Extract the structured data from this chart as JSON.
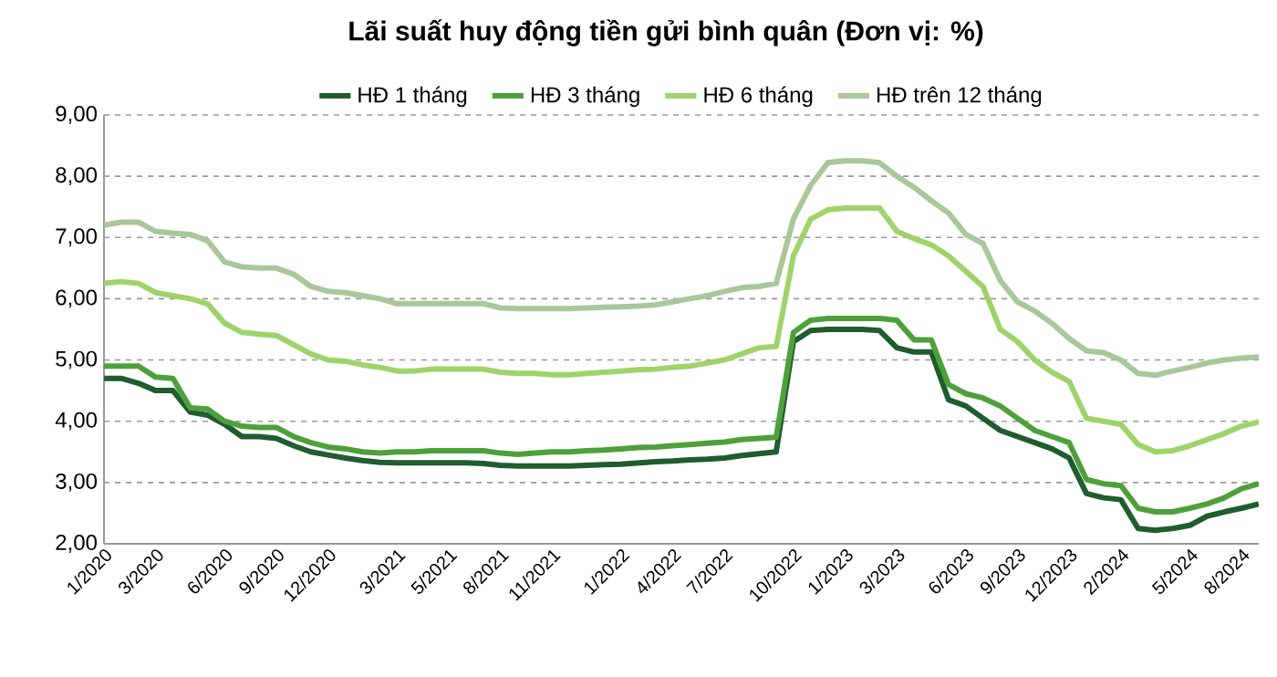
{
  "chart_data": {
    "type": "line",
    "title": "Lãi suất huy động tiền gửi bình quân (Đơn vị: %)",
    "categories": [
      "1/2020",
      null,
      null,
      "3/2020",
      null,
      null,
      null,
      "6/2020",
      null,
      null,
      "9/2020",
      null,
      null,
      "12/2020",
      null,
      null,
      null,
      "3/2021",
      null,
      null,
      "5/2021",
      null,
      null,
      "8/2021",
      null,
      null,
      "11/2021",
      null,
      null,
      null,
      "1/2022",
      null,
      null,
      "4/2022",
      null,
      null,
      "7/2022",
      null,
      null,
      null,
      "10/2022",
      null,
      null,
      "1/2023",
      null,
      null,
      "3/2023",
      null,
      null,
      null,
      "6/2023",
      null,
      null,
      "9/2023",
      null,
      null,
      "12/2023",
      null,
      null,
      "2/2024",
      null,
      null,
      null,
      "5/2024",
      null,
      null,
      "8/2024",
      null
    ],
    "series": [
      {
        "name": "HĐ 1 tháng",
        "color": "#1f5c2e",
        "values": [
          4.7,
          4.7,
          4.62,
          4.5,
          4.5,
          4.15,
          4.1,
          3.95,
          3.75,
          3.75,
          3.72,
          3.6,
          3.5,
          3.45,
          3.4,
          3.36,
          3.33,
          3.32,
          3.32,
          3.32,
          3.32,
          3.32,
          3.31,
          3.28,
          3.27,
          3.27,
          3.27,
          3.27,
          3.28,
          3.29,
          3.3,
          3.32,
          3.34,
          3.35,
          3.37,
          3.38,
          3.4,
          3.44,
          3.47,
          3.5,
          5.3,
          5.48,
          5.5,
          5.5,
          5.5,
          5.48,
          5.2,
          5.13,
          5.13,
          4.35,
          4.25,
          4.05,
          3.85,
          3.75,
          3.65,
          3.55,
          3.4,
          2.82,
          2.75,
          2.72,
          2.25,
          2.22,
          2.25,
          2.3,
          2.45,
          2.52,
          2.58,
          2.65
        ]
      },
      {
        "name": "HĐ 3 tháng",
        "color": "#4ea03a",
        "values": [
          4.9,
          4.9,
          4.9,
          4.72,
          4.7,
          4.22,
          4.2,
          4.0,
          3.92,
          3.9,
          3.9,
          3.75,
          3.65,
          3.58,
          3.55,
          3.5,
          3.48,
          3.5,
          3.5,
          3.52,
          3.52,
          3.52,
          3.52,
          3.48,
          3.46,
          3.48,
          3.5,
          3.5,
          3.52,
          3.53,
          3.55,
          3.57,
          3.58,
          3.6,
          3.62,
          3.64,
          3.66,
          3.7,
          3.72,
          3.74,
          5.45,
          5.65,
          5.68,
          5.68,
          5.68,
          5.68,
          5.65,
          5.33,
          5.33,
          4.6,
          4.45,
          4.38,
          4.25,
          4.05,
          3.85,
          3.75,
          3.65,
          3.05,
          2.98,
          2.95,
          2.58,
          2.52,
          2.52,
          2.58,
          2.65,
          2.75,
          2.9,
          2.98
        ]
      },
      {
        "name": "HĐ 6 tháng",
        "color": "#9fd36a",
        "values": [
          6.25,
          6.28,
          6.25,
          6.1,
          6.05,
          6.0,
          5.92,
          5.6,
          5.45,
          5.42,
          5.4,
          5.25,
          5.1,
          5.0,
          4.98,
          4.92,
          4.88,
          4.82,
          4.82,
          4.85,
          4.85,
          4.85,
          4.85,
          4.8,
          4.78,
          4.78,
          4.76,
          4.76,
          4.78,
          4.8,
          4.82,
          4.84,
          4.85,
          4.88,
          4.9,
          4.95,
          5.0,
          5.1,
          5.2,
          5.22,
          6.7,
          7.3,
          7.45,
          7.48,
          7.48,
          7.48,
          7.1,
          6.98,
          6.88,
          6.7,
          6.45,
          6.2,
          5.5,
          5.3,
          5.0,
          4.8,
          4.65,
          4.05,
          4.0,
          3.95,
          3.62,
          3.5,
          3.52,
          3.6,
          3.7,
          3.8,
          3.92,
          3.99
        ]
      },
      {
        "name": "HĐ trên 12 tháng",
        "color": "#a8c79a",
        "values": [
          7.2,
          7.25,
          7.25,
          7.1,
          7.07,
          7.05,
          6.95,
          6.6,
          6.52,
          6.5,
          6.5,
          6.4,
          6.2,
          6.12,
          6.1,
          6.05,
          6.0,
          5.92,
          5.92,
          5.92,
          5.92,
          5.92,
          5.92,
          5.85,
          5.84,
          5.84,
          5.84,
          5.84,
          5.85,
          5.86,
          5.87,
          5.88,
          5.9,
          5.95,
          6.0,
          6.05,
          6.12,
          6.18,
          6.2,
          6.25,
          7.3,
          7.85,
          8.22,
          8.25,
          8.25,
          8.22,
          8.0,
          7.82,
          7.6,
          7.4,
          7.05,
          6.9,
          6.3,
          5.95,
          5.8,
          5.6,
          5.35,
          5.15,
          5.12,
          5.0,
          4.78,
          4.75,
          4.82,
          4.88,
          4.95,
          5.0,
          5.03,
          5.05
        ]
      }
    ],
    "ylim": [
      2,
      9
    ],
    "yticks": [
      {
        "value": 2,
        "label": "2,00"
      },
      {
        "value": 3,
        "label": "3,00"
      },
      {
        "value": 4,
        "label": "4,00"
      },
      {
        "value": 5,
        "label": "5,00"
      },
      {
        "value": 6,
        "label": "6,00"
      },
      {
        "value": 7,
        "label": "7,00"
      },
      {
        "value": 8,
        "label": "8,00"
      },
      {
        "value": 9,
        "label": "9,00"
      }
    ],
    "grid": "y",
    "legend": "top",
    "line_style": "solid",
    "marker": "none"
  }
}
